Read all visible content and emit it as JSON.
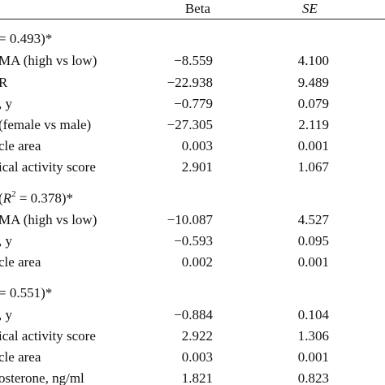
{
  "header": {
    "beta": "Beta",
    "se": "SE"
  },
  "sections": [
    {
      "title": "= 0.493)*",
      "rows": [
        {
          "label": "MA (high vs low)",
          "beta": "−8.559",
          "se": "4.100"
        },
        {
          "label": "R",
          "beta": "−22.938",
          "se": "9.489"
        },
        {
          "label": ", y",
          "beta": "−0.779",
          "se": "0.079"
        },
        {
          "label": "(female vs male)",
          "beta": "−27.305",
          "se": "2.119"
        },
        {
          "label": "cle area",
          "beta": "0.003",
          "se": "0.001"
        },
        {
          "label": "ical activity score",
          "beta": "2.901",
          "se": "1.067"
        }
      ]
    },
    {
      "title_pre": "(",
      "title_var": "R",
      "title_sup": "2",
      "title_post": " = 0.378)*",
      "rows": [
        {
          "label": "MA (high vs low)",
          "beta": "−10.087",
          "se": "4.527"
        },
        {
          "label": ", y",
          "beta": "−0.593",
          "se": "0.095"
        },
        {
          "label": "cle area",
          "beta": "0.002",
          "se": "0.001"
        }
      ]
    },
    {
      "title": "= 0.551)*",
      "rows": [
        {
          "label": ", y",
          "beta": "−0.884",
          "se": "0.104"
        },
        {
          "label": "ical activity score",
          "beta": "2.922",
          "se": "1.306"
        },
        {
          "label": "cle area",
          "beta": "0.003",
          "se": "0.001"
        },
        {
          "label": "osterone, ng/ml",
          "beta": "1.821",
          "se": "0.823"
        }
      ]
    }
  ]
}
